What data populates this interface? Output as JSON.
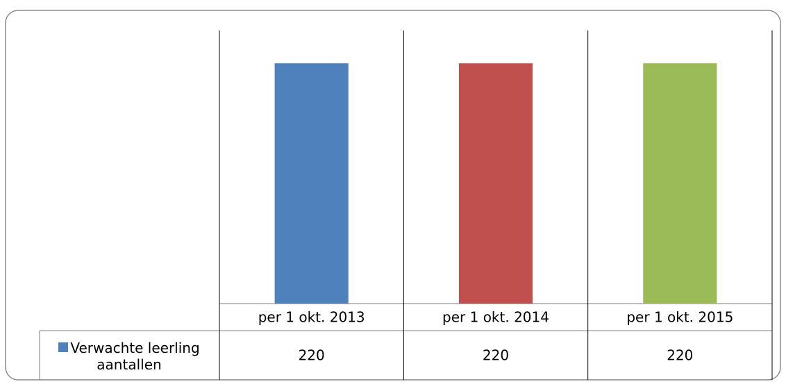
{
  "chart_data": {
    "type": "bar",
    "categories": [
      "per 1 okt. 2013",
      "per 1 okt. 2014",
      "per 1 okt. 2015"
    ],
    "series": [
      {
        "name": "Verwachte leerling aantallen",
        "colors": [
          "#4f81bd",
          "#c0504d",
          "#9bbb59"
        ],
        "values": [
          220,
          220,
          220
        ]
      }
    ],
    "ylim": [
      0,
      250
    ]
  }
}
